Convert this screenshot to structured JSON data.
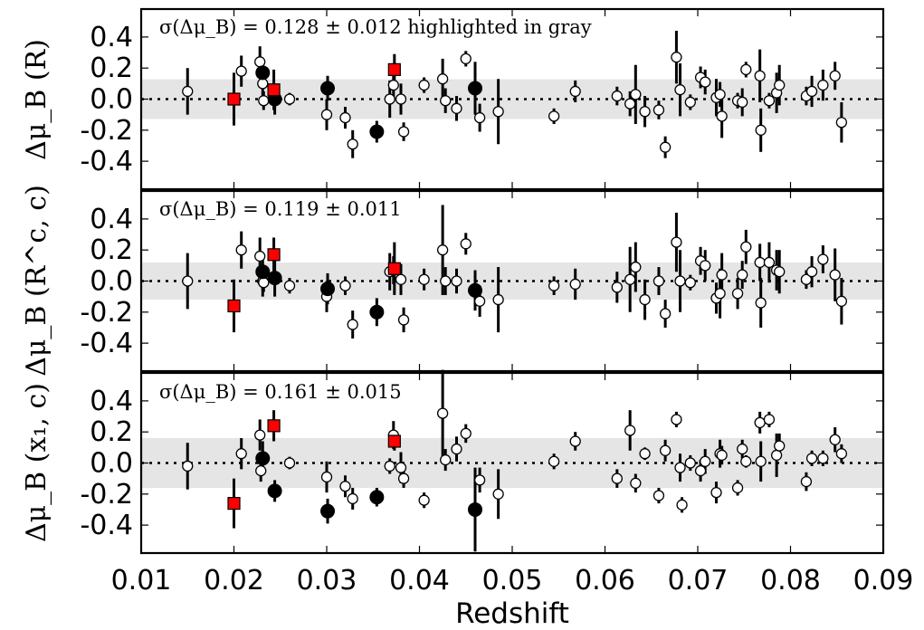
{
  "chart_data": [
    {
      "type": "scatter",
      "title": "",
      "annotation": "σ(Δμ_B) = 0.128 ± 0.012 highlighted in gray",
      "ylabel": "Δμ_B (R)",
      "xlabel": "",
      "xlim": [
        0.01,
        0.09
      ],
      "ylim": [
        -0.58,
        0.58
      ],
      "yticks": [
        "0.4",
        "0.2",
        "0.0",
        "-0.2",
        "-0.4"
      ],
      "band": 0.128,
      "series": [
        {
          "style": "open-circle",
          "points": [
            [
              0.015,
              0.05,
              0.15
            ],
            [
              0.0208,
              0.18,
              0.1
            ],
            [
              0.0228,
              0.24,
              0.1
            ],
            [
              0.0231,
              0.1,
              0.13
            ],
            [
              0.0232,
              -0.01,
              0.06
            ],
            [
              0.026,
              0.0,
              0.04
            ],
            [
              0.03,
              -0.1,
              0.1
            ],
            [
              0.032,
              -0.12,
              0.07
            ],
            [
              0.0328,
              -0.29,
              0.09
            ],
            [
              0.0368,
              0.0,
              0.12
            ],
            [
              0.0372,
              0.09,
              0.09
            ],
            [
              0.038,
              0.0,
              0.1
            ],
            [
              0.0383,
              -0.21,
              0.06
            ],
            [
              0.0405,
              0.09,
              0.05
            ],
            [
              0.0425,
              0.13,
              0.13
            ],
            [
              0.0428,
              -0.01,
              0.08
            ],
            [
              0.044,
              -0.06,
              0.08
            ],
            [
              0.045,
              0.26,
              0.05
            ],
            [
              0.0465,
              -0.12,
              0.09
            ],
            [
              0.0485,
              -0.08,
              0.21
            ],
            [
              0.0545,
              -0.11,
              0.05
            ],
            [
              0.0568,
              0.05,
              0.07
            ],
            [
              0.0613,
              0.02,
              0.06
            ],
            [
              0.0627,
              -0.03,
              0.08
            ],
            [
              0.0633,
              0.03,
              0.19
            ],
            [
              0.0643,
              -0.08,
              0.1
            ],
            [
              0.0658,
              -0.07,
              0.06
            ],
            [
              0.0665,
              -0.31,
              0.07
            ],
            [
              0.0677,
              0.27,
              0.17
            ],
            [
              0.0681,
              0.06,
              0.17
            ],
            [
              0.0692,
              -0.02,
              0.05
            ],
            [
              0.0703,
              0.14,
              0.07
            ],
            [
              0.0708,
              0.11,
              0.08
            ],
            [
              0.072,
              0.01,
              0.12
            ],
            [
              0.0726,
              -0.11,
              0.14
            ],
            [
              0.0724,
              0.03,
              0.08
            ],
            [
              0.0743,
              -0.01,
              0.05
            ],
            [
              0.0748,
              -0.02,
              0.09
            ],
            [
              0.0752,
              0.19,
              0.05
            ],
            [
              0.0767,
              0.15,
              0.17
            ],
            [
              0.0768,
              -0.2,
              0.14
            ],
            [
              0.0777,
              -0.01,
              0.05
            ],
            [
              0.0785,
              0.04,
              0.13
            ],
            [
              0.0788,
              0.09,
              0.13
            ],
            [
              0.0817,
              0.02,
              0.06
            ],
            [
              0.0823,
              0.05,
              0.1
            ],
            [
              0.0835,
              0.09,
              0.1
            ],
            [
              0.0848,
              0.15,
              0.09
            ],
            [
              0.0855,
              -0.15,
              0.13
            ]
          ]
        },
        {
          "style": "filled-circle",
          "points": [
            [
              0.0231,
              0.17,
              0.08
            ],
            [
              0.0244,
              0.0,
              0.1
            ],
            [
              0.0301,
              0.07,
              0.08
            ],
            [
              0.0354,
              -0.21,
              0.07
            ],
            [
              0.046,
              0.07,
              0.17
            ]
          ]
        },
        {
          "style": "red-square",
          "points": [
            [
              0.02,
              0.0,
              0.17
            ],
            [
              0.0243,
              0.06,
              0.13
            ],
            [
              0.0373,
              0.19,
              0.1
            ]
          ]
        }
      ]
    },
    {
      "type": "scatter",
      "title": "",
      "annotation": "σ(Δμ_B) = 0.119 ± 0.011",
      "ylabel": "Δμ_B (R^c, c)",
      "xlabel": "",
      "xlim": [
        0.01,
        0.09
      ],
      "ylim": [
        -0.58,
        0.58
      ],
      "yticks": [
        "0.4",
        "0.2",
        "0.0",
        "-0.2",
        "-0.4"
      ],
      "band": 0.119,
      "series": [
        {
          "style": "open-circle",
          "points": [
            [
              0.015,
              0.0,
              0.18
            ],
            [
              0.0208,
              0.2,
              0.12
            ],
            [
              0.0228,
              0.16,
              0.12
            ],
            [
              0.0231,
              0.0,
              0.1
            ],
            [
              0.0232,
              -0.01,
              0.06
            ],
            [
              0.026,
              -0.03,
              0.05
            ],
            [
              0.03,
              -0.1,
              0.1
            ],
            [
              0.032,
              -0.03,
              0.06
            ],
            [
              0.0328,
              -0.28,
              0.09
            ],
            [
              0.0368,
              0.06,
              0.12
            ],
            [
              0.0372,
              0.07,
              0.09
            ],
            [
              0.038,
              0.01,
              0.1
            ],
            [
              0.0383,
              -0.25,
              0.08
            ],
            [
              0.0405,
              0.01,
              0.07
            ],
            [
              0.0425,
              0.2,
              0.29
            ],
            [
              0.0428,
              0.0,
              0.09
            ],
            [
              0.044,
              0.0,
              0.08
            ],
            [
              0.045,
              0.24,
              0.07
            ],
            [
              0.0465,
              -0.13,
              0.1
            ],
            [
              0.0485,
              -0.12,
              0.21
            ],
            [
              0.0545,
              -0.03,
              0.06
            ],
            [
              0.0568,
              -0.02,
              0.1
            ],
            [
              0.0613,
              -0.04,
              0.1
            ],
            [
              0.0627,
              0.01,
              0.21
            ],
            [
              0.0633,
              0.09,
              0.16
            ],
            [
              0.0643,
              -0.12,
              0.13
            ],
            [
              0.0658,
              0.0,
              0.09
            ],
            [
              0.0665,
              -0.21,
              0.09
            ],
            [
              0.0677,
              0.25,
              0.19
            ],
            [
              0.0681,
              0.0,
              0.2
            ],
            [
              0.0692,
              -0.01,
              0.05
            ],
            [
              0.0703,
              0.13,
              0.09
            ],
            [
              0.0708,
              0.1,
              0.1
            ],
            [
              0.072,
              -0.11,
              0.1
            ],
            [
              0.0726,
              0.04,
              0.14
            ],
            [
              0.0724,
              -0.08,
              0.16
            ],
            [
              0.0743,
              -0.08,
              0.1
            ],
            [
              0.0748,
              0.04,
              0.09
            ],
            [
              0.0752,
              0.22,
              0.11
            ],
            [
              0.0767,
              0.12,
              0.12
            ],
            [
              0.0768,
              -0.14,
              0.16
            ],
            [
              0.0777,
              0.12,
              0.13
            ],
            [
              0.0785,
              0.07,
              0.13
            ],
            [
              0.0788,
              0.06,
              0.14
            ],
            [
              0.0817,
              0.01,
              0.06
            ],
            [
              0.0823,
              0.06,
              0.1
            ],
            [
              0.0835,
              0.14,
              0.09
            ],
            [
              0.0848,
              0.04,
              0.17
            ],
            [
              0.0855,
              -0.13,
              0.15
            ]
          ]
        },
        {
          "style": "filled-circle",
          "points": [
            [
              0.0231,
              0.06,
              0.12
            ],
            [
              0.0244,
              0.02,
              0.12
            ],
            [
              0.0301,
              -0.05,
              0.1
            ],
            [
              0.0354,
              -0.2,
              0.09
            ],
            [
              0.046,
              -0.06,
              0.13
            ]
          ]
        },
        {
          "style": "red-square",
          "points": [
            [
              0.02,
              -0.16,
              0.17
            ],
            [
              0.0243,
              0.17,
              0.11
            ],
            [
              0.0373,
              0.08,
              0.17
            ]
          ]
        }
      ]
    },
    {
      "type": "scatter",
      "title": "",
      "annotation": "σ(Δμ_B) = 0.161 ± 0.015",
      "ylabel": "Δμ_B (x₁, c)",
      "xlabel": "Redshift",
      "xlim": [
        0.01,
        0.09
      ],
      "ylim": [
        -0.58,
        0.58
      ],
      "xticks": [
        "0.01",
        "0.02",
        "0.03",
        "0.04",
        "0.05",
        "0.06",
        "0.07",
        "0.08",
        "0.09"
      ],
      "yticks": [
        "0.4",
        "0.2",
        "0.0",
        "-0.2",
        "-0.4"
      ],
      "band": 0.161,
      "series": [
        {
          "style": "open-circle",
          "points": [
            [
              0.015,
              -0.02,
              0.15
            ],
            [
              0.0208,
              0.06,
              0.1
            ],
            [
              0.0228,
              0.18,
              0.1
            ],
            [
              0.0229,
              -0.05,
              0.07
            ],
            [
              0.026,
              0.0,
              0.04
            ],
            [
              0.03,
              -0.09,
              0.1
            ],
            [
              0.032,
              -0.15,
              0.07
            ],
            [
              0.0328,
              -0.23,
              0.07
            ],
            [
              0.0368,
              -0.02,
              0.05
            ],
            [
              0.0372,
              0.18,
              0.09
            ],
            [
              0.038,
              -0.03,
              0.1
            ],
            [
              0.0383,
              -0.1,
              0.06
            ],
            [
              0.0405,
              -0.24,
              0.05
            ],
            [
              0.0425,
              0.32,
              0.28
            ],
            [
              0.0428,
              0.02,
              0.07
            ],
            [
              0.044,
              0.09,
              0.08
            ],
            [
              0.045,
              0.19,
              0.06
            ],
            [
              0.0465,
              -0.11,
              0.08
            ],
            [
              0.0485,
              -0.2,
              0.16
            ],
            [
              0.0545,
              0.01,
              0.05
            ],
            [
              0.0568,
              0.14,
              0.06
            ],
            [
              0.0613,
              -0.1,
              0.06
            ],
            [
              0.0627,
              0.21,
              0.13
            ],
            [
              0.0633,
              -0.13,
              0.06
            ],
            [
              0.0643,
              0.06,
              0.04
            ],
            [
              0.0658,
              -0.21,
              0.05
            ],
            [
              0.0665,
              0.08,
              0.07
            ],
            [
              0.0677,
              0.28,
              0.05
            ],
            [
              0.0681,
              -0.03,
              0.09
            ],
            [
              0.0683,
              -0.27,
              0.05
            ],
            [
              0.0692,
              0.0,
              0.05
            ],
            [
              0.0703,
              -0.05,
              0.07
            ],
            [
              0.0708,
              0.01,
              0.08
            ],
            [
              0.072,
              -0.19,
              0.07
            ],
            [
              0.0724,
              0.06,
              0.09
            ],
            [
              0.0726,
              0.05,
              0.06
            ],
            [
              0.0743,
              -0.16,
              0.05
            ],
            [
              0.0748,
              0.09,
              0.06
            ],
            [
              0.0752,
              0.01,
              0.04
            ],
            [
              0.0767,
              0.26,
              0.07
            ],
            [
              0.0768,
              0.01,
              0.13
            ],
            [
              0.0777,
              0.28,
              0.05
            ],
            [
              0.0785,
              0.05,
              0.14
            ],
            [
              0.0788,
              0.11,
              0.08
            ],
            [
              0.0817,
              -0.12,
              0.06
            ],
            [
              0.0823,
              0.03,
              0.05
            ],
            [
              0.0835,
              0.03,
              0.05
            ],
            [
              0.0848,
              0.15,
              0.08
            ],
            [
              0.0855,
              0.06,
              0.06
            ]
          ]
        },
        {
          "style": "filled-circle",
          "points": [
            [
              0.0231,
              0.03,
              0.11
            ],
            [
              0.0244,
              -0.18,
              0.07
            ],
            [
              0.0301,
              -0.31,
              0.08
            ],
            [
              0.0354,
              -0.22,
              0.06
            ],
            [
              0.046,
              -0.3,
              0.27
            ]
          ]
        },
        {
          "style": "red-square",
          "points": [
            [
              0.02,
              -0.26,
              0.16
            ],
            [
              0.0243,
              0.24,
              0.1
            ],
            [
              0.0373,
              0.14,
              0.06
            ]
          ]
        }
      ]
    }
  ],
  "colors": {
    "band": "#e5e5e5",
    "open_fill": "#ffffff",
    "filled": "#000000",
    "red": "#ff0000"
  }
}
